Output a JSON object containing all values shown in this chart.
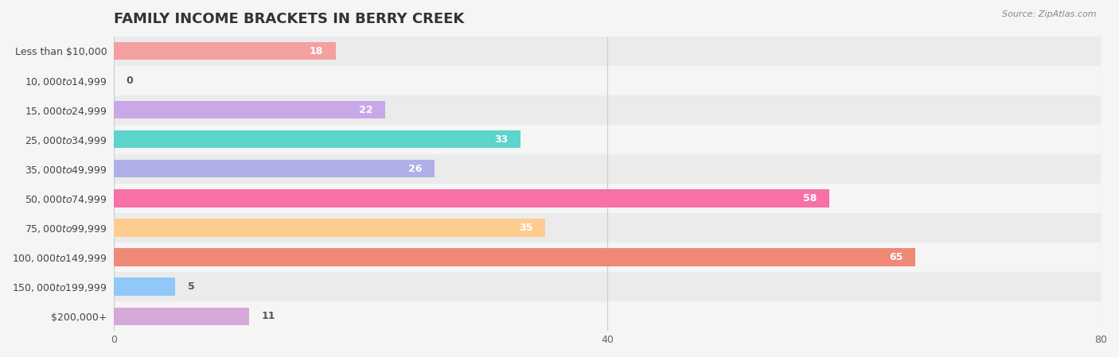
{
  "title": "FAMILY INCOME BRACKETS IN BERRY CREEK",
  "source": "Source: ZipAtlas.com",
  "categories": [
    "Less than $10,000",
    "$10,000 to $14,999",
    "$15,000 to $24,999",
    "$25,000 to $34,999",
    "$35,000 to $49,999",
    "$50,000 to $74,999",
    "$75,000 to $99,999",
    "$100,000 to $149,999",
    "$150,000 to $199,999",
    "$200,000+"
  ],
  "values": [
    18,
    0,
    22,
    33,
    26,
    58,
    35,
    65,
    5,
    11
  ],
  "bar_colors": [
    "#F4A0A0",
    "#A8C8F0",
    "#C9A8E8",
    "#5DD4CC",
    "#B0B0E8",
    "#F870A8",
    "#FFCC90",
    "#F08878",
    "#90C8F8",
    "#D4A8D8"
  ],
  "xlim": [
    0,
    80
  ],
  "xticks": [
    0,
    40,
    80
  ],
  "bar_height": 0.6,
  "background_color": "#f5f5f5",
  "title_fontsize": 13,
  "label_fontsize": 9,
  "value_fontsize": 9,
  "row_even_color": "#ebebeb",
  "row_odd_color": "#f5f5f5"
}
